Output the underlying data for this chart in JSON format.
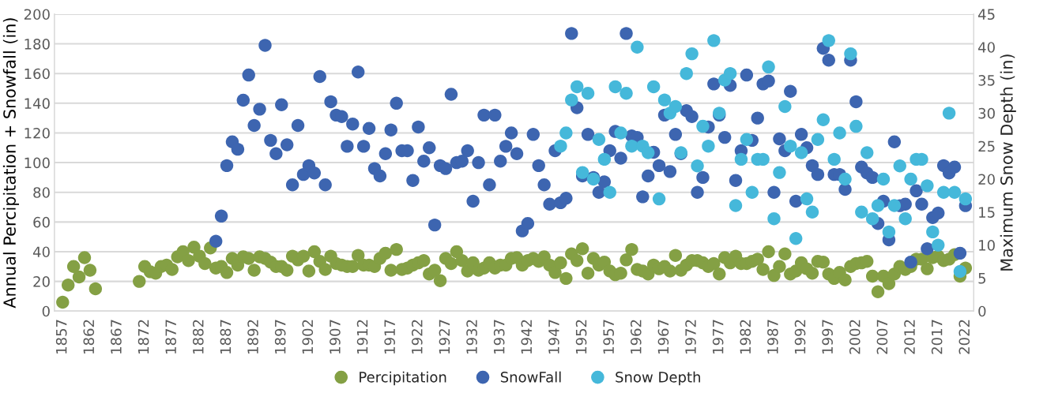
{
  "chart_data": {
    "type": "scatter",
    "ylabel": "Annual Percipitation + Snowfall (in)",
    "y2label": "Maximum Snow Depth (in)",
    "xlim": [
      1855.5,
      2023.5
    ],
    "xticks": [
      1857,
      1862,
      1867,
      1872,
      1877,
      1882,
      1887,
      1892,
      1897,
      1902,
      1907,
      1912,
      1917,
      1922,
      1927,
      1932,
      1937,
      1942,
      1947,
      1952,
      1957,
      1962,
      1967,
      1972,
      1977,
      1982,
      1987,
      1992,
      1997,
      2002,
      2007,
      2012,
      2017,
      2022
    ],
    "ylim": [
      0,
      200
    ],
    "yticks": [
      0,
      20,
      40,
      60,
      80,
      100,
      120,
      140,
      160,
      180,
      200
    ],
    "y2lim": [
      0,
      45
    ],
    "y2ticks": [
      0,
      5,
      10,
      15,
      20,
      25,
      30,
      35,
      40,
      45
    ],
    "grid": "y",
    "legend": "bottom",
    "marker": "circle",
    "series": [
      {
        "name": "Percipitation",
        "color": "#84a044",
        "x": [
          1857,
          1858,
          1859,
          1860,
          1861,
          1862,
          1863,
          1871,
          1872,
          1873,
          1874,
          1875,
          1876,
          1877,
          1878,
          1879,
          1880,
          1881,
          1882,
          1883,
          1884,
          1885,
          1886,
          1887,
          1888,
          1889,
          1890,
          1891,
          1892,
          1893,
          1894,
          1895,
          1896,
          1897,
          1898,
          1899,
          1900,
          1901,
          1902,
          1903,
          1904,
          1905,
          1906,
          1907,
          1908,
          1909,
          1910,
          1911,
          1912,
          1913,
          1914,
          1915,
          1916,
          1917,
          1918,
          1919,
          1920,
          1921,
          1922,
          1923,
          1924,
          1925,
          1926,
          1927,
          1928,
          1929,
          1930,
          1931,
          1932,
          1933,
          1934,
          1935,
          1936,
          1937,
          1938,
          1939,
          1940,
          1941,
          1942,
          1943,
          1944,
          1945,
          1946,
          1947,
          1948,
          1949,
          1950,
          1951,
          1952,
          1953,
          1954,
          1955,
          1956,
          1957,
          1958,
          1959,
          1960,
          1961,
          1962,
          1963,
          1964,
          1965,
          1966,
          1967,
          1968,
          1969,
          1970,
          1971,
          1972,
          1973,
          1974,
          1975,
          1976,
          1977,
          1978,
          1979,
          1980,
          1981,
          1982,
          1983,
          1984,
          1985,
          1986,
          1987,
          1988,
          1989,
          1990,
          1991,
          1992,
          1993,
          1994,
          1995,
          1996,
          1997,
          1998,
          1999,
          2000,
          2001,
          2002,
          2003,
          2004,
          2005,
          2006,
          2007,
          2008,
          2009,
          2010,
          2011,
          2012,
          2013,
          2014,
          2015,
          2016,
          2017,
          2018,
          2019,
          2020,
          2021,
          2022
        ],
        "values": [
          6,
          17.5,
          30,
          23,
          36,
          27.5,
          15,
          20,
          30,
          26.5,
          25.5,
          30,
          31,
          28,
          36.5,
          40,
          34,
          43,
          37,
          32,
          42.5,
          29,
          30,
          26,
          35.5,
          31,
          36.5,
          35.5,
          27.5,
          36.5,
          35.5,
          33,
          30,
          30,
          27.5,
          37,
          34.5,
          37,
          27,
          40,
          33.5,
          28,
          37,
          32,
          31,
          30,
          30,
          37.5,
          31,
          31,
          30,
          35.5,
          39,
          27.5,
          41.5,
          28,
          29,
          31,
          32.5,
          34,
          25,
          27.5,
          20.5,
          35.5,
          32,
          40,
          34,
          27,
          32.5,
          27.5,
          29,
          32.5,
          29,
          31,
          31,
          35.5,
          36,
          31,
          34,
          35.5,
          33.5,
          36.5,
          31,
          26,
          32.5,
          22,
          38.5,
          34,
          42,
          25.5,
          35.5,
          31,
          33,
          27,
          24.5,
          25.5,
          34.5,
          41.5,
          28,
          27,
          25,
          31,
          28.5,
          30,
          27,
          37.5,
          27.5,
          31,
          34,
          34,
          32.5,
          30,
          32,
          25,
          36,
          32.5,
          37,
          32,
          32,
          33.5,
          35,
          28,
          40,
          24,
          30,
          38.5,
          25,
          27,
          32.5,
          28.5,
          25.5,
          33.5,
          33,
          25,
          22,
          26,
          21,
          30,
          32,
          32.5,
          33.5,
          23.5,
          13,
          23.5,
          18.5,
          25,
          30,
          28,
          30,
          35,
          35,
          28.5,
          36,
          37,
          34,
          35,
          38,
          23.5,
          29
        ]
      },
      {
        "name": "SnowFall",
        "color": "#3d65b0",
        "x": [
          1885,
          1886,
          1887,
          1888,
          1889,
          1890,
          1891,
          1892,
          1893,
          1894,
          1895,
          1896,
          1897,
          1898,
          1899,
          1900,
          1901,
          1902,
          1903,
          1904,
          1905,
          1906,
          1907,
          1908,
          1909,
          1910,
          1911,
          1912,
          1913,
          1914,
          1915,
          1916,
          1917,
          1918,
          1919,
          1920,
          1921,
          1922,
          1923,
          1924,
          1925,
          1926,
          1927,
          1928,
          1929,
          1930,
          1931,
          1932,
          1933,
          1934,
          1935,
          1936,
          1937,
          1938,
          1939,
          1940,
          1941,
          1942,
          1943,
          1944,
          1945,
          1946,
          1947,
          1948,
          1949,
          1950,
          1951,
          1952,
          1953,
          1954,
          1955,
          1956,
          1957,
          1958,
          1959,
          1960,
          1961,
          1962,
          1963,
          1964,
          1965,
          1966,
          1967,
          1968,
          1969,
          1970,
          1971,
          1972,
          1973,
          1974,
          1975,
          1976,
          1977,
          1978,
          1979,
          1980,
          1981,
          1982,
          1983,
          1984,
          1985,
          1986,
          1987,
          1988,
          1989,
          1990,
          1991,
          1992,
          1993,
          1994,
          1995,
          1996,
          1997,
          1998,
          1999,
          2000,
          2001,
          2002,
          2003,
          2004,
          2005,
          2006,
          2007,
          2008,
          2009,
          2010,
          2011,
          2012,
          2013,
          2014,
          2015,
          2016,
          2017,
          2018,
          2019,
          2020,
          2021,
          2022
        ],
        "values": [
          47,
          64,
          98,
          114,
          109,
          142,
          159,
          125,
          136,
          179,
          115,
          106,
          139,
          112,
          85,
          125,
          92,
          98,
          93,
          158,
          85,
          141,
          132,
          131,
          111,
          126,
          161,
          111,
          123,
          96,
          91,
          106,
          122,
          140,
          108,
          108,
          88,
          124,
          101,
          110,
          58,
          98,
          96,
          146,
          100,
          101,
          108,
          74,
          100,
          132,
          85,
          132,
          101,
          111,
          120,
          106,
          54,
          59,
          119,
          98,
          85,
          72,
          108,
          73,
          76,
          187,
          137,
          91,
          119,
          90,
          80,
          87,
          108,
          121,
          103,
          187,
          118,
          117,
          77,
          91,
          107,
          98,
          132,
          94,
          119,
          106,
          135,
          131,
          80,
          90,
          124,
          153,
          132,
          117,
          152,
          88,
          108,
          159,
          115,
          130,
          153,
          155,
          80,
          116,
          108,
          148,
          74,
          119,
          110,
          98,
          92,
          177,
          169,
          92,
          92,
          82,
          169,
          141,
          97,
          93,
          90,
          59,
          74,
          48,
          114,
          71,
          72,
          33,
          81,
          72,
          42,
          63,
          66,
          98,
          93,
          97,
          39,
          71
        ]
      },
      {
        "name": "Snow Depth",
        "color": "#45b8da",
        "axis": "y2",
        "x": [
          1948,
          1949,
          1950,
          1951,
          1952,
          1953,
          1954,
          1955,
          1956,
          1957,
          1958,
          1959,
          1960,
          1961,
          1962,
          1963,
          1964,
          1965,
          1966,
          1967,
          1968,
          1969,
          1970,
          1971,
          1972,
          1973,
          1974,
          1975,
          1976,
          1977,
          1978,
          1979,
          1980,
          1981,
          1982,
          1983,
          1984,
          1985,
          1986,
          1987,
          1988,
          1989,
          1990,
          1991,
          1992,
          1993,
          1994,
          1995,
          1996,
          1997,
          1998,
          1999,
          2000,
          2001,
          2002,
          2003,
          2004,
          2005,
          2006,
          2007,
          2008,
          2009,
          2010,
          2011,
          2012,
          2013,
          2014,
          2015,
          2016,
          2017,
          2018,
          2019,
          2020,
          2021,
          2022
        ],
        "values": [
          25,
          27,
          32,
          34,
          21,
          33,
          20,
          26,
          23,
          18,
          34,
          27,
          33,
          25,
          40,
          25,
          24,
          34,
          17,
          32,
          30,
          31,
          24,
          36,
          39,
          22,
          28,
          25,
          41,
          30,
          35,
          36,
          16,
          23,
          26,
          18,
          23,
          23,
          37,
          14,
          21,
          31,
          25,
          11,
          24,
          17,
          15,
          26,
          29,
          41,
          23,
          27,
          20,
          39,
          28,
          15,
          24,
          14,
          16,
          20,
          12,
          16,
          22,
          14,
          20,
          23,
          23,
          19,
          12,
          10,
          18,
          30,
          18,
          6,
          17
        ]
      }
    ]
  }
}
